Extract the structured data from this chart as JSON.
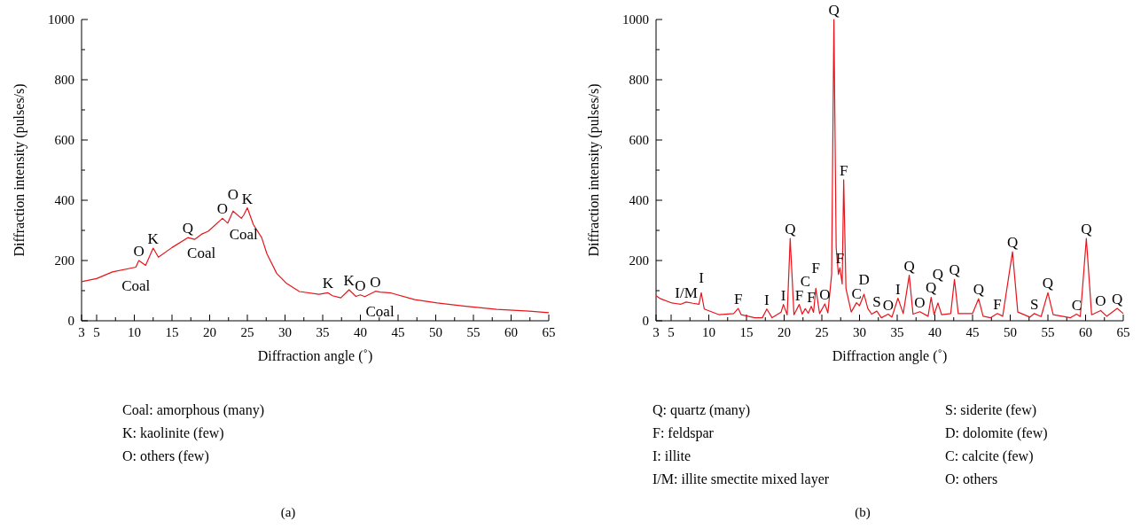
{
  "chart_data": [
    {
      "type": "line",
      "title": "(a)",
      "xlabel": "Diffraction angle (˚)",
      "ylabel": "Diffraction intensity (pulses/s)",
      "x": [
        3,
        5,
        7.1,
        10.2,
        10.6,
        11.5,
        12.5,
        13.2,
        15,
        17.1,
        18,
        18.9,
        19.8,
        21.7,
        22.4,
        23.1,
        24.2,
        24.5,
        25,
        25.8,
        26.9,
        27.6,
        28.9,
        30.2,
        31.9,
        34.5,
        35.7,
        36.3,
        37.4,
        38.5,
        39.4,
        40.0,
        40.6,
        42,
        42.6,
        44.1,
        47.2,
        50.2,
        53.7,
        58.1,
        62.4,
        65
      ],
      "series": [
        {
          "color": "#e8141b",
          "values": [
            130,
            140,
            162,
            178,
            200,
            184,
            241,
            211,
            243,
            276,
            270,
            287,
            297,
            340,
            324,
            364,
            340,
            350,
            375,
            319,
            276,
            222,
            157,
            124,
            97,
            88,
            93,
            83,
            76,
            103,
            81,
            86,
            80,
            98,
            95,
            92,
            70,
            59,
            49,
            38,
            32,
            27
          ]
        }
      ],
      "xlim": [
        3,
        65
      ],
      "xticks": [
        3,
        5,
        {
          "value": 7.5,
          "label": null
        },
        10,
        {
          "value": 12.5,
          "label": null
        },
        15,
        {
          "value": 17.5,
          "label": null
        },
        20,
        {
          "value": 22.5,
          "label": null
        },
        25,
        {
          "value": 27.5,
          "label": null
        },
        30,
        {
          "value": 32.5,
          "label": null
        },
        35,
        {
          "value": 37.5,
          "label": null
        },
        40,
        {
          "value": 42.5,
          "label": null
        },
        45,
        {
          "value": 47.5,
          "label": null
        },
        50,
        {
          "value": 52.5,
          "label": null
        },
        55,
        {
          "value": 57.5,
          "label": null
        },
        60,
        {
          "value": 62.5,
          "label": null
        },
        65
      ],
      "ylim": [
        0,
        1000
      ],
      "yticks": [
        0,
        {
          "value": 100,
          "label": null
        },
        200,
        {
          "value": 300,
          "label": null
        },
        400,
        {
          "value": 500,
          "label": null
        },
        600,
        {
          "value": 700,
          "label": null
        },
        800,
        {
          "value": 900,
          "label": null
        },
        1000
      ],
      "annotations": [
        {
          "text": "O",
          "x": 10.6,
          "y": 200
        },
        {
          "text": "K",
          "x": 12.5,
          "y": 241
        },
        {
          "text": "Q",
          "x": 17.1,
          "y": 276
        },
        {
          "text": "O",
          "x": 21.7,
          "y": 340
        },
        {
          "text": "O",
          "x": 23.1,
          "y": 364
        },
        {
          "text": "K",
          "x": 25,
          "y": 375
        },
        {
          "text": "K",
          "x": 35.7,
          "y": 93
        },
        {
          "text": "K",
          "x": 38.5,
          "y": 103
        },
        {
          "text": "O",
          "x": 40.0,
          "y": 86
        },
        {
          "text": "O",
          "x": 42,
          "y": 98
        },
        {
          "text": "Coal",
          "x": 10.2,
          "y": 178
        },
        {
          "text": "Coal",
          "x": 18.9,
          "y": 287
        },
        {
          "text": "Coal",
          "x": 24.5,
          "y": 350
        },
        {
          "text": "Coal",
          "x": 42.6,
          "y": 95
        },
        "Coal: amorphous (many)",
        "K: kaolinite (few)",
        "O: others (few)"
      ]
    },
    {
      "type": "line",
      "title": "(b)",
      "xlabel": "Diffraction angle (˚)",
      "ylabel": "Diffraction intensity (pulses/s)",
      "x": [
        3,
        3.6,
        5.1,
        6.3,
        7.0,
        7.9,
        8.7,
        9.0,
        9.4,
        11.4,
        13.3,
        13.9,
        14.3,
        16.1,
        17.1,
        17.7,
        18.4,
        19.6,
        19.9,
        20.4,
        20.8,
        21.3,
        22.0,
        22.4,
        22.8,
        23.2,
        23.6,
        23.9,
        24.2,
        24.7,
        25.4,
        25.8,
        26.3,
        26.6,
        26.9,
        27.2,
        27.4,
        27.7,
        27.9,
        28.2,
        28.9,
        29.6,
        30.0,
        30.6,
        31.1,
        31.6,
        32.3,
        32.9,
        33.8,
        34.3,
        35.1,
        35.8,
        36.6,
        37.1,
        38.0,
        39.1,
        39.5,
        39.9,
        40.4,
        40.9,
        42.1,
        42.6,
        43.1,
        45.0,
        45.8,
        46.4,
        47.4,
        48.3,
        49.0,
        50.3,
        51.0,
        52.6,
        53.2,
        54.1,
        55.0,
        55.7,
        58.0,
        58.8,
        59.3,
        60.1,
        60.8,
        62.0,
        62.8,
        64.2,
        65
      ],
      "series": [
        {
          "color": "#e8141b",
          "values": [
            83,
            73,
            59,
            55,
            62,
            58,
            55,
            93,
            39,
            20,
            24,
            41,
            20,
            10,
            10,
            39,
            10,
            29,
            54,
            20,
            273,
            20,
            54,
            22,
            40,
            25,
            48,
            28,
            108,
            24,
            56,
            26,
            154,
            1000,
            244,
            154,
            176,
            122,
            468,
            107,
            29,
            60,
            50,
            88,
            41,
            22,
            32,
            10,
            22,
            12,
            75,
            24,
            151,
            22,
            30,
            15,
            78,
            20,
            59,
            20,
            24,
            137,
            24,
            24,
            73,
            15,
            10,
            24,
            15,
            229,
            29,
            12,
            24,
            14,
            93,
            20,
            10,
            22,
            14,
            273,
            20,
            34,
            15,
            41,
            24
          ]
        }
      ],
      "xlim": [
        3,
        65
      ],
      "xticks": [
        3,
        5,
        {
          "value": 7.5,
          "label": null
        },
        10,
        {
          "value": 12.5,
          "label": null
        },
        15,
        {
          "value": 17.5,
          "label": null
        },
        20,
        {
          "value": 22.5,
          "label": null
        },
        25,
        {
          "value": 27.5,
          "label": null
        },
        30,
        {
          "value": 32.5,
          "label": null
        },
        35,
        {
          "value": 37.5,
          "label": null
        },
        40,
        {
          "value": 42.5,
          "label": null
        },
        45,
        {
          "value": 47.5,
          "label": null
        },
        50,
        {
          "value": 52.5,
          "label": null
        },
        55,
        {
          "value": 57.5,
          "label": null
        },
        60,
        {
          "value": 62.5,
          "label": null
        },
        65
      ],
      "ylim": [
        0,
        1000
      ],
      "yticks": [
        0,
        {
          "value": 100,
          "label": null
        },
        200,
        {
          "value": 300,
          "label": null
        },
        400,
        {
          "value": 500,
          "label": null
        },
        600,
        {
          "value": 700,
          "label": null
        },
        800,
        {
          "value": 900,
          "label": null
        },
        1000
      ],
      "annotations": [
        {
          "text": "I/M",
          "x": 7.0,
          "y": 62
        },
        {
          "text": "I",
          "x": 9.0,
          "y": 93
        },
        {
          "text": "F",
          "x": 13.9,
          "y": 41
        },
        {
          "text": "I",
          "x": 17.7,
          "y": 39
        },
        {
          "text": "I",
          "x": 19.9,
          "y": 54
        },
        {
          "text": "Q",
          "x": 20.8,
          "y": 273
        },
        {
          "text": "F",
          "x": 22.0,
          "y": 54
        },
        {
          "text": "C",
          "x": 22.8,
          "y": 40
        },
        {
          "text": "F",
          "x": 23.6,
          "y": 48
        },
        {
          "text": "F",
          "x": 24.2,
          "y": 108
        },
        {
          "text": "O",
          "x": 25.4,
          "y": 56
        },
        {
          "text": "Q",
          "x": 26.6,
          "y": 1000
        },
        {
          "text": "F",
          "x": 27.9,
          "y": 468
        },
        {
          "text": "F",
          "x": 27.4,
          "y": 176
        },
        {
          "text": "C",
          "x": 29.6,
          "y": 60
        },
        {
          "text": "D",
          "x": 30.6,
          "y": 88
        },
        {
          "text": "S",
          "x": 32.3,
          "y": 32
        },
        {
          "text": "O",
          "x": 33.8,
          "y": 22
        },
        {
          "text": "I",
          "x": 35.1,
          "y": 75
        },
        {
          "text": "Q",
          "x": 36.6,
          "y": 151
        },
        {
          "text": "O",
          "x": 38.0,
          "y": 30
        },
        {
          "text": "Q",
          "x": 39.5,
          "y": 78
        },
        {
          "text": "Q",
          "x": 40.4,
          "y": 59
        },
        {
          "text": "Q",
          "x": 42.6,
          "y": 137
        },
        {
          "text": "Q",
          "x": 45.8,
          "y": 73
        },
        {
          "text": "F",
          "x": 48.3,
          "y": 24
        },
        {
          "text": "Q",
          "x": 50.3,
          "y": 229
        },
        {
          "text": "S",
          "x": 53.2,
          "y": 24
        },
        {
          "text": "Q",
          "x": 55.0,
          "y": 93
        },
        {
          "text": "C",
          "x": 58.8,
          "y": 22
        },
        {
          "text": "Q",
          "x": 60.1,
          "y": 273
        },
        {
          "text": "O",
          "x": 62.0,
          "y": 34
        },
        {
          "text": "Q",
          "x": 64.2,
          "y": 41
        },
        "Q: quartz (many)",
        "F: feldspar",
        "I: illite",
        "I/M: illite smectite mixed layer",
        "S: siderite (few)",
        "D: dolomite (few)",
        "C: calcite (few)",
        "O: others"
      ]
    }
  ]
}
